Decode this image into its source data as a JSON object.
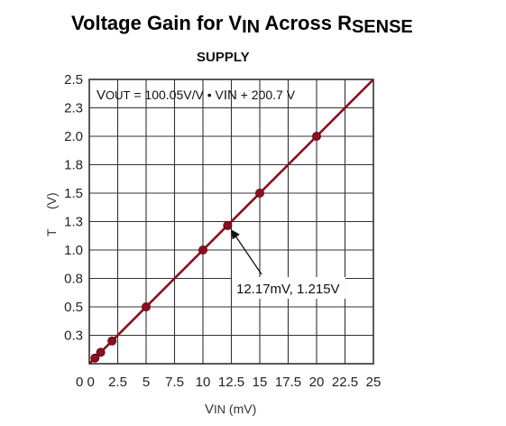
{
  "title_parts": {
    "a": "Voltage Gain for V",
    "b": "IN",
    "c": " Across R",
    "d": "SENSE"
  },
  "subtitle": "SUPPLY",
  "equation": {
    "a": "V",
    "b": "OUT",
    "c": " = 100.05V/V • V",
    "d": "IN",
    "e": " + 200.7 V"
  },
  "annotation": "12.17mV, 1.215V",
  "xlabel": {
    "main": "V",
    "sub": "IN",
    "unit": " (mV)"
  },
  "ylabel": {
    "prefix": "T",
    "unit": "(V)"
  },
  "chart_data": {
    "type": "line",
    "x_tick_labels": [
      "0 0",
      "2.5",
      "5",
      "7.5",
      "10",
      "12.5",
      "15",
      "17.5",
      "20",
      "22.5",
      "25"
    ],
    "x_tick_values": [
      0,
      2.5,
      5,
      7.5,
      10,
      12.5,
      15,
      17.5,
      20,
      22.5,
      25
    ],
    "y_tick_labels": [
      "0.3",
      "0.5",
      "0.8",
      "1.0",
      "1.3",
      "1.5",
      "1.8",
      "2.0",
      "2.3",
      "2.5"
    ],
    "xlim": [
      0,
      25
    ],
    "ylim": [
      0,
      2.5
    ],
    "grid": true,
    "line_color": "#8b0f1e",
    "line_x": [
      0,
      25
    ],
    "line_y": [
      0.0,
      2.5
    ],
    "points_x": [
      0.5,
      1.0,
      2.0,
      5.0,
      10.0,
      12.17,
      15.0,
      20.0
    ],
    "points_y": [
      0.05,
      0.1,
      0.2,
      0.5,
      1.0,
      1.215,
      1.5,
      2.0
    ],
    "annotated_point": [
      12.17,
      1.215
    ]
  }
}
